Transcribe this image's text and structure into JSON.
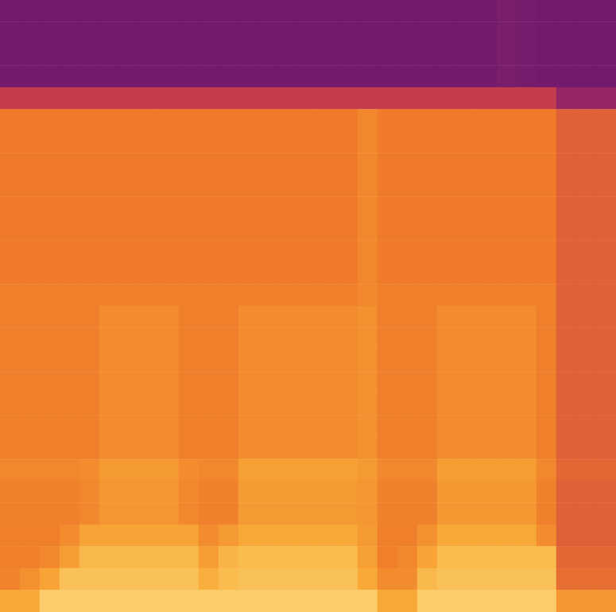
{
  "chart_data": {
    "type": "heatmap",
    "tick_labels": false,
    "grid": false,
    "zlim": [
      0,
      100
    ],
    "z": [
      [
        5,
        5,
        5,
        5,
        5,
        5,
        5,
        5,
        5,
        5,
        5,
        5,
        5,
        5,
        5,
        5,
        5,
        5,
        5,
        5,
        5,
        5,
        5,
        5,
        5,
        9,
        7,
        5,
        5,
        5,
        5
      ],
      [
        5,
        5,
        5,
        5,
        5,
        5,
        5,
        5,
        5,
        5,
        5,
        5,
        5,
        5,
        5,
        5,
        5,
        5,
        5,
        5,
        5,
        5,
        5,
        5,
        5,
        9,
        7,
        5,
        5,
        5,
        5
      ],
      [
        5,
        5,
        5,
        5,
        5,
        5,
        5,
        5,
        5,
        5,
        5,
        5,
        5,
        5,
        5,
        5,
        5,
        5,
        5,
        5,
        5,
        5,
        5,
        5,
        5,
        9,
        7,
        5,
        5,
        5,
        5
      ],
      [
        5,
        5,
        5,
        5,
        5,
        5,
        5,
        5,
        5,
        5,
        5,
        5,
        5,
        5,
        5,
        5,
        5,
        5,
        5,
        5,
        5,
        5,
        5,
        5,
        5,
        9,
        7,
        5,
        5,
        5,
        5
      ],
      [
        40,
        40,
        40,
        40,
        40,
        40,
        40,
        40,
        40,
        40,
        40,
        40,
        40,
        40,
        40,
        40,
        40,
        40,
        40,
        40,
        40,
        40,
        40,
        40,
        40,
        40,
        40,
        40,
        22,
        22,
        22
      ],
      [
        60,
        60,
        60,
        60,
        60,
        60,
        60,
        60,
        60,
        60,
        60,
        60,
        60,
        60,
        60,
        60,
        60,
        60,
        66,
        60,
        60,
        60,
        60,
        60,
        60,
        60,
        60,
        60,
        52,
        52,
        52
      ],
      [
        60,
        60,
        60,
        60,
        60,
        60,
        60,
        60,
        60,
        60,
        60,
        60,
        60,
        60,
        60,
        60,
        60,
        60,
        66,
        60,
        60,
        60,
        60,
        60,
        60,
        60,
        60,
        60,
        52,
        52,
        52
      ],
      [
        60,
        60,
        60,
        60,
        60,
        60,
        60,
        60,
        60,
        60,
        60,
        60,
        60,
        60,
        60,
        60,
        60,
        60,
        66,
        60,
        60,
        60,
        60,
        60,
        60,
        60,
        60,
        60,
        52,
        52,
        52
      ],
      [
        60,
        60,
        60,
        60,
        60,
        60,
        60,
        60,
        60,
        60,
        60,
        60,
        60,
        60,
        60,
        60,
        60,
        60,
        66,
        60,
        60,
        60,
        60,
        60,
        60,
        60,
        60,
        60,
        52,
        52,
        52
      ],
      [
        60,
        60,
        60,
        60,
        60,
        60,
        60,
        60,
        60,
        60,
        60,
        60,
        60,
        60,
        60,
        60,
        60,
        60,
        66,
        60,
        60,
        60,
        60,
        60,
        60,
        60,
        60,
        60,
        52,
        52,
        52
      ],
      [
        60,
        60,
        60,
        60,
        60,
        60,
        60,
        60,
        60,
        60,
        60,
        60,
        60,
        60,
        60,
        60,
        60,
        60,
        66,
        60,
        60,
        60,
        60,
        60,
        60,
        60,
        60,
        60,
        52,
        52,
        52
      ],
      [
        60,
        60,
        60,
        60,
        60,
        60,
        60,
        60,
        60,
        60,
        60,
        60,
        60,
        60,
        60,
        60,
        60,
        60,
        66,
        60,
        60,
        60,
        60,
        60,
        60,
        60,
        60,
        60,
        52,
        52,
        52
      ],
      [
        60,
        60,
        60,
        60,
        60,
        60,
        60,
        60,
        60,
        60,
        60,
        60,
        60,
        60,
        60,
        60,
        60,
        60,
        66,
        60,
        60,
        60,
        60,
        60,
        60,
        60,
        60,
        60,
        52,
        52,
        52
      ],
      [
        62,
        62,
        62,
        62,
        62,
        62,
        62,
        62,
        62,
        62,
        62,
        62,
        62,
        62,
        62,
        62,
        62,
        62,
        66,
        62,
        62,
        62,
        62,
        62,
        62,
        62,
        62,
        62,
        52,
        52,
        52
      ],
      [
        62,
        62,
        62,
        62,
        62,
        68,
        68,
        68,
        68,
        62,
        62,
        62,
        68,
        68,
        68,
        68,
        68,
        68,
        70,
        62,
        62,
        62,
        68,
        68,
        68,
        68,
        68,
        62,
        52,
        52,
        52
      ],
      [
        62,
        62,
        62,
        62,
        62,
        68,
        68,
        68,
        68,
        62,
        62,
        62,
        68,
        68,
        68,
        68,
        68,
        68,
        70,
        62,
        62,
        62,
        68,
        68,
        68,
        68,
        68,
        62,
        52,
        52,
        52
      ],
      [
        62,
        62,
        62,
        62,
        62,
        68,
        68,
        68,
        68,
        62,
        62,
        62,
        68,
        68,
        68,
        68,
        68,
        68,
        70,
        62,
        62,
        62,
        68,
        68,
        68,
        68,
        68,
        62,
        52,
        52,
        52
      ],
      [
        62,
        62,
        62,
        62,
        62,
        68,
        68,
        68,
        68,
        62,
        62,
        62,
        68,
        68,
        68,
        68,
        68,
        68,
        70,
        62,
        62,
        62,
        68,
        68,
        68,
        68,
        68,
        62,
        52,
        52,
        52
      ],
      [
        62,
        62,
        62,
        62,
        62,
        68,
        68,
        68,
        68,
        62,
        62,
        62,
        68,
        68,
        68,
        68,
        68,
        68,
        70,
        62,
        62,
        62,
        68,
        68,
        68,
        68,
        68,
        62,
        52,
        52,
        52
      ],
      [
        62,
        62,
        62,
        62,
        62,
        68,
        68,
        68,
        68,
        62,
        62,
        62,
        68,
        68,
        68,
        68,
        68,
        68,
        70,
        62,
        62,
        62,
        68,
        68,
        68,
        68,
        68,
        62,
        52,
        52,
        52
      ],
      [
        62,
        62,
        62,
        62,
        62,
        68,
        68,
        68,
        68,
        62,
        62,
        62,
        68,
        68,
        68,
        68,
        68,
        68,
        70,
        62,
        62,
        62,
        68,
        68,
        68,
        68,
        68,
        62,
        52,
        52,
        52
      ],
      [
        66,
        66,
        66,
        66,
        68,
        74,
        74,
        74,
        74,
        68,
        66,
        66,
        76,
        76,
        76,
        76,
        76,
        76,
        74,
        66,
        66,
        66,
        75,
        75,
        75,
        75,
        75,
        66,
        54,
        54,
        54
      ],
      [
        63,
        63,
        63,
        63,
        66,
        72,
        72,
        72,
        72,
        66,
        63,
        63,
        74,
        74,
        74,
        74,
        74,
        74,
        72,
        63,
        63,
        63,
        73,
        73,
        73,
        73,
        73,
        63,
        52,
        52,
        52
      ],
      [
        63,
        63,
        63,
        63,
        66,
        72,
        72,
        72,
        72,
        66,
        63,
        63,
        74,
        74,
        74,
        74,
        74,
        74,
        72,
        63,
        63,
        63,
        73,
        73,
        73,
        73,
        73,
        63,
        52,
        52,
        52
      ],
      [
        62,
        62,
        62,
        68,
        78,
        78,
        78,
        78,
        78,
        78,
        68,
        74,
        80,
        80,
        80,
        80,
        80,
        80,
        74,
        62,
        62,
        70,
        80,
        80,
        80,
        80,
        80,
        68,
        52,
        52,
        52
      ],
      [
        62,
        62,
        66,
        75,
        85,
        85,
        85,
        85,
        85,
        85,
        75,
        84,
        86,
        86,
        86,
        86,
        86,
        86,
        76,
        62,
        66,
        78,
        86,
        86,
        86,
        86,
        86,
        86,
        54,
        54,
        54
      ],
      [
        64,
        70,
        78,
        88,
        88,
        88,
        88,
        88,
        88,
        88,
        82,
        86,
        88,
        88,
        88,
        88,
        88,
        88,
        80,
        68,
        68,
        85,
        88,
        88,
        88,
        88,
        88,
        88,
        56,
        56,
        56
      ],
      [
        80,
        80,
        92,
        92,
        92,
        92,
        92,
        92,
        92,
        92,
        92,
        92,
        92,
        92,
        92,
        92,
        92,
        92,
        92,
        80,
        80,
        92,
        92,
        92,
        92,
        92,
        92,
        92,
        72,
        72,
        72
      ]
    ]
  }
}
